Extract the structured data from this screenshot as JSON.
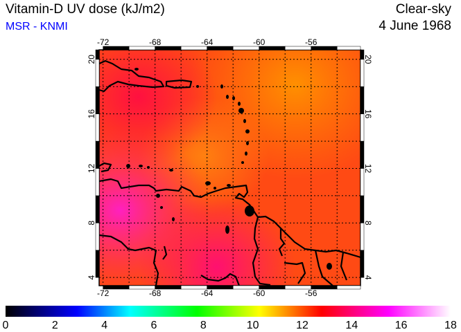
{
  "header": {
    "title": "Vitamin-D UV dose (kJ/m2)",
    "subtitle": "MSR - KNMI",
    "subtitle_color": "#0000ff",
    "condition": "Clear-sky",
    "date": "4 June 1968"
  },
  "map": {
    "lon_range": [
      -72.3,
      -52.2
    ],
    "lat_range": [
      3.4,
      20.7
    ],
    "lon_ticks": [
      "-72",
      "-68",
      "-64",
      "-60",
      "-56"
    ],
    "lat_ticks": [
      "4",
      "8",
      "12",
      "16",
      "20"
    ],
    "grid_step_deg": 2
  },
  "colorbar": {
    "ticks": [
      "0",
      "2",
      "4",
      "6",
      "8",
      "10",
      "12",
      "14",
      "16",
      "18"
    ],
    "range": [
      0,
      18
    ],
    "colors": [
      "#000000",
      "#0000ff",
      "#00ffff",
      "#00ff00",
      "#ffff00",
      "#ff0000",
      "#ff00ff",
      "#ffffff"
    ]
  }
}
